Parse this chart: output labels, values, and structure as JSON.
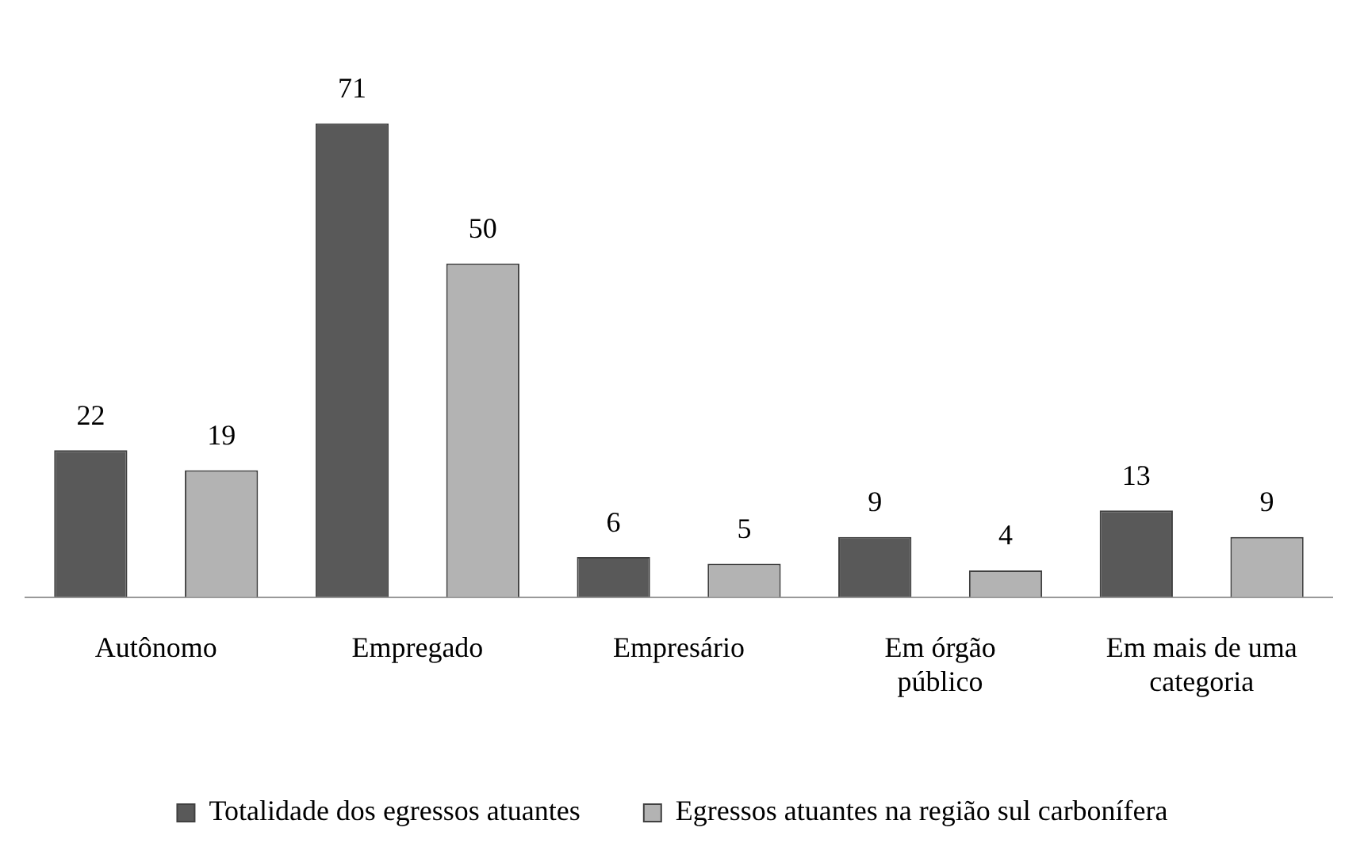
{
  "chart_data": {
    "type": "bar",
    "categories": [
      "Autônomo",
      "Empregado",
      "Empresário",
      "Em órgão público",
      "Em mais de uma categoria"
    ],
    "series": [
      {
        "name": "Totalidade dos egressos atuantes",
        "color": "#595959",
        "values": [
          22,
          71,
          6,
          9,
          13
        ]
      },
      {
        "name": "Egressos atuantes na região sul carbonífera",
        "color": "#b3b3b3",
        "values": [
          19,
          50,
          5,
          4,
          9
        ]
      }
    ],
    "data_labels": true,
    "relative": false,
    "grid": false,
    "legend": "bottom"
  }
}
